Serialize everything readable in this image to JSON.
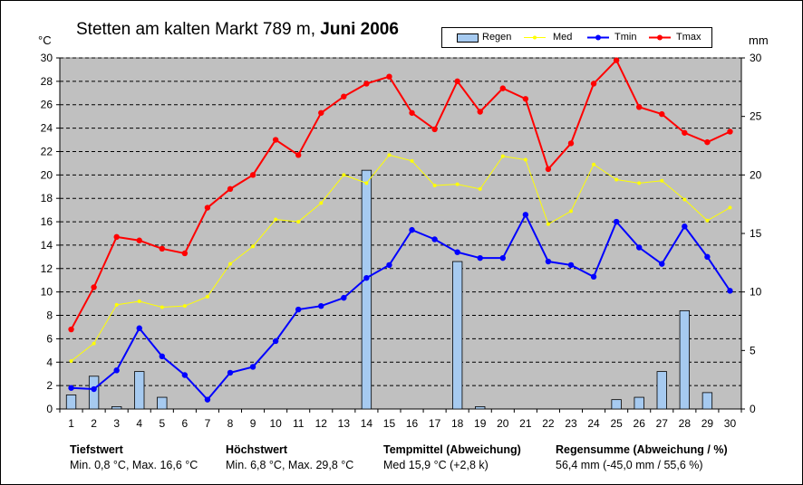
{
  "title": {
    "place": "Stetten am kalten Markt 789 m,",
    "period": "Juni 2006"
  },
  "units": {
    "left": "°C",
    "right": "mm"
  },
  "legend": [
    {
      "label": "Regen",
      "color": "#a6caf0",
      "kind": "bar"
    },
    {
      "label": "Med",
      "color": "#ffff00",
      "kind": "line"
    },
    {
      "label": "Tmin",
      "color": "#0000ff",
      "kind": "line"
    },
    {
      "label": "Tmax",
      "color": "#ff0000",
      "kind": "line"
    }
  ],
  "stats": {
    "min": {
      "heading": "Tiefstwert",
      "text": "Min. 0,8 °C, Max. 16,6 °C"
    },
    "max": {
      "heading": "Höchstwert",
      "text": "Min. 6,8 °C, Max. 29,8 °C"
    },
    "mean": {
      "heading": "Tempmittel (Abweichung)",
      "text": "Med 15,9 °C (+2,8 k)"
    },
    "rain": {
      "heading": "Regensumme (Abweichung / %)",
      "text": "56,4 mm (-45,0 mm / 55,6 %)"
    }
  },
  "chart_data": {
    "type": "line",
    "x": [
      1,
      2,
      3,
      4,
      5,
      6,
      7,
      8,
      9,
      10,
      11,
      12,
      13,
      14,
      15,
      16,
      17,
      18,
      19,
      20,
      21,
      22,
      23,
      24,
      25,
      26,
      27,
      28,
      29,
      30
    ],
    "ylim": [
      0,
      30
    ],
    "y2lim": [
      0,
      30
    ],
    "yticks": [
      0,
      2,
      4,
      6,
      8,
      10,
      12,
      14,
      16,
      18,
      20,
      22,
      24,
      26,
      28,
      30
    ],
    "y2ticks": [
      0,
      5,
      10,
      15,
      20,
      25,
      30
    ],
    "grid": true,
    "legend_position": "top-right",
    "plot_background": "#c0c0c0",
    "series": [
      {
        "name": "Regen",
        "kind": "bar",
        "axis": "right",
        "color": "#a6caf0",
        "values": [
          1.2,
          2.8,
          0.2,
          3.2,
          1.0,
          0,
          0,
          0,
          0,
          0,
          0,
          0,
          0,
          20.4,
          0,
          0,
          0,
          12.6,
          0.2,
          0,
          0,
          0,
          0,
          0,
          0.8,
          1.0,
          3.2,
          8.4,
          1.4,
          0
        ]
      },
      {
        "name": "Med",
        "kind": "line",
        "axis": "left",
        "color": "#ffff00",
        "values": [
          4.1,
          5.6,
          8.9,
          9.2,
          8.7,
          8.8,
          9.6,
          12.4,
          13.9,
          16.2,
          16.0,
          17.6,
          20.0,
          19.3,
          21.7,
          21.2,
          19.1,
          19.2,
          18.8,
          21.6,
          21.3,
          15.8,
          16.9,
          20.9,
          19.6,
          19.3,
          19.5,
          17.9,
          16.1,
          17.2
        ]
      },
      {
        "name": "Tmin",
        "kind": "line",
        "axis": "left",
        "color": "#0000ff",
        "values": [
          1.8,
          1.7,
          3.3,
          6.9,
          4.5,
          2.9,
          0.8,
          3.1,
          3.6,
          5.8,
          8.5,
          8.8,
          9.5,
          11.2,
          12.3,
          15.3,
          14.5,
          13.4,
          12.9,
          12.9,
          16.6,
          12.6,
          12.3,
          11.3,
          16.0,
          13.8,
          12.4,
          15.6,
          13.0,
          10.1
        ]
      },
      {
        "name": "Tmax",
        "kind": "line",
        "axis": "left",
        "color": "#ff0000",
        "values": [
          6.8,
          10.4,
          14.7,
          14.4,
          13.7,
          13.3,
          17.2,
          18.8,
          20.0,
          23.0,
          21.7,
          25.3,
          26.7,
          27.8,
          28.4,
          25.3,
          23.9,
          28.0,
          25.4,
          27.4,
          26.5,
          20.5,
          22.7,
          27.8,
          29.8,
          25.8,
          25.2,
          23.6,
          22.8,
          23.7
        ]
      }
    ]
  }
}
